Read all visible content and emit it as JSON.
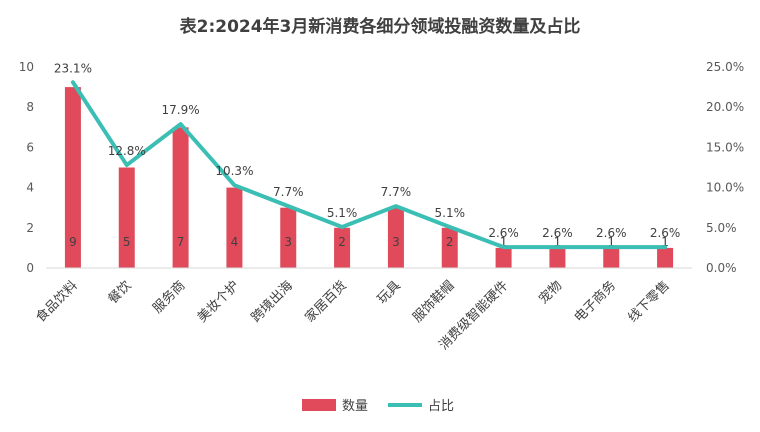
{
  "chart_data": {
    "type": "bar",
    "title": "表2:2024年3月新消费各细分领域投融资数量及占比",
    "categories": [
      "食品饮料",
      "餐饮",
      "服务商",
      "美妆个护",
      "跨境出海",
      "家居百货",
      "玩具",
      "服饰鞋帽",
      "消费级智能硬件",
      "宠物",
      "电子商务",
      "线下零售"
    ],
    "series": [
      {
        "name": "数量",
        "type": "bar",
        "axis": "left",
        "color": "#E04A5A",
        "values": [
          9,
          5,
          7,
          4,
          3,
          2,
          3,
          2,
          1,
          1,
          1,
          1
        ],
        "labels": [
          "9",
          "5",
          "7",
          "4",
          "3",
          "2",
          "3",
          "2",
          "1",
          "1",
          "1",
          "1"
        ]
      },
      {
        "name": "占比",
        "type": "line",
        "axis": "right",
        "color": "#3BBFB4",
        "values": [
          23.1,
          12.8,
          17.9,
          10.3,
          7.7,
          5.1,
          7.7,
          5.1,
          2.6,
          2.6,
          2.6,
          2.6
        ],
        "labels": [
          "23.1%",
          "12.8%",
          "17.9%",
          "10.3%",
          "7.7%",
          "5.1%",
          "7.7%",
          "5.1%",
          "2.6%",
          "2.6%",
          "2.6%",
          "2.6%"
        ]
      }
    ],
    "ylim": [
      0,
      10
    ],
    "yticks": [
      "0",
      "2",
      "4",
      "6",
      "8",
      "10"
    ],
    "y2lim": [
      0,
      25
    ],
    "y2ticks": [
      "0.0%",
      "5.0%",
      "10.0%",
      "15.0%",
      "20.0%",
      "25.0%"
    ],
    "grid": false,
    "legend_position": "bottom"
  }
}
